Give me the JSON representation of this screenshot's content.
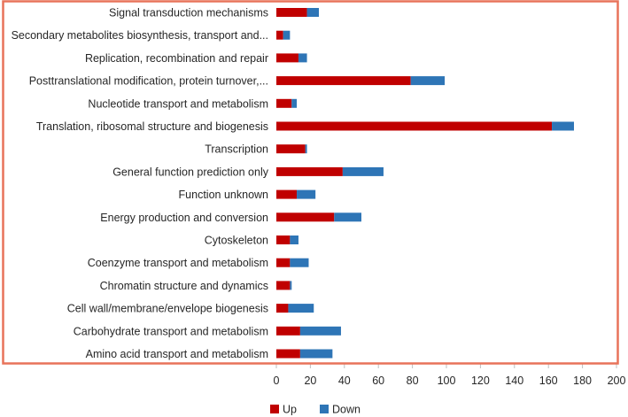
{
  "chart_data": {
    "type": "bar",
    "orientation": "horizontal",
    "stacked": true,
    "categories": [
      "Signal transduction mechanisms",
      "Secondary metabolites biosynthesis, transport and...",
      "Replication, recombination and repair",
      "Posttranslational modification, protein turnover,...",
      "Nucleotide transport and metabolism",
      "Translation, ribosomal structure and biogenesis",
      "Transcription",
      "General function prediction only",
      "Function unknown",
      "Energy production and conversion",
      "Cytoskeleton",
      "Coenzyme transport and metabolism",
      "Chromatin structure and dynamics",
      "Cell wall/membrane/envelope biogenesis",
      "Carbohydrate transport and metabolism",
      "Amino acid transport and metabolism"
    ],
    "series": [
      {
        "name": "Up",
        "color": "#c00000",
        "values": [
          18,
          4,
          13,
          79,
          9,
          162,
          17,
          39,
          12,
          34,
          8,
          8,
          8,
          7,
          14,
          14
        ]
      },
      {
        "name": "Down",
        "color": "#2e75b6",
        "values": [
          7,
          4,
          5,
          20,
          3,
          13,
          1,
          24,
          11,
          16,
          5,
          11,
          1,
          15,
          24,
          19
        ]
      }
    ],
    "xlim": [
      0,
      200
    ],
    "xticks": [
      0,
      20,
      40,
      60,
      80,
      100,
      120,
      140,
      160,
      180,
      200
    ],
    "grid": false,
    "legend_position": "bottom",
    "frame_color": "#e8735a"
  }
}
